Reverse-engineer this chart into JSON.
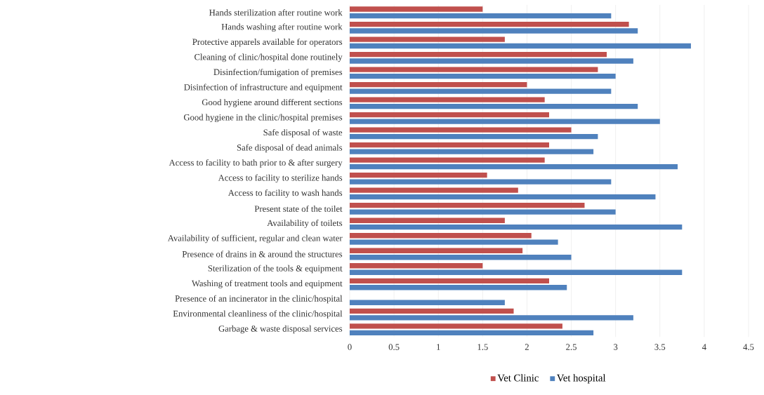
{
  "chart_data": {
    "type": "bar",
    "orientation": "horizontal",
    "categories": [
      "Hands sterilization after routine work",
      "Hands washing after routine work",
      "Protective apparels available for operators",
      "Cleaning of clinic/hospital done routinely",
      "Disinfection/fumigation of premises",
      "Disinfection of infrastructure and equipment",
      "Good hygiene around different sections",
      "Good hygiene in the clinic/hospital premises",
      "Safe disposal of waste",
      "Safe disposal of dead animals",
      "Access to facility to bath prior to & after surgery",
      "Access to facility to sterilize hands",
      "Access to facility to wash hands",
      "Present state of the toilet",
      "Availability of toilets",
      "Availability of sufficient, regular and clean water",
      "Presence of drains in & around the structures",
      "Sterilization of the tools & equipment",
      "Washing of treatment tools and equipment",
      "Presence of an incinerator in the clinic/hospital",
      "Environmental cleanliness of the clinic/hospital",
      "Garbage & waste disposal services"
    ],
    "series": [
      {
        "name": "Vet Clinic",
        "color": "#c0504d",
        "values": [
          1.5,
          3.15,
          1.75,
          2.9,
          2.8,
          2.0,
          2.2,
          2.25,
          2.5,
          2.25,
          2.2,
          1.55,
          1.9,
          2.65,
          1.75,
          2.05,
          1.95,
          1.5,
          2.25,
          null,
          1.85,
          2.4
        ]
      },
      {
        "name": "Vet hospital",
        "color": "#4f81bd",
        "values": [
          2.95,
          3.25,
          3.85,
          3.2,
          3.0,
          2.95,
          3.25,
          3.5,
          2.8,
          2.75,
          3.7,
          2.95,
          3.45,
          3.0,
          3.75,
          2.35,
          2.5,
          3.75,
          2.45,
          1.75,
          3.2,
          2.75
        ]
      }
    ],
    "xlim": [
      0,
      4.5
    ],
    "xticks": [
      0,
      0.5,
      1,
      1.5,
      2,
      2.5,
      3,
      3.5,
      4,
      4.5
    ],
    "grid": "x",
    "legend": "bottom"
  }
}
